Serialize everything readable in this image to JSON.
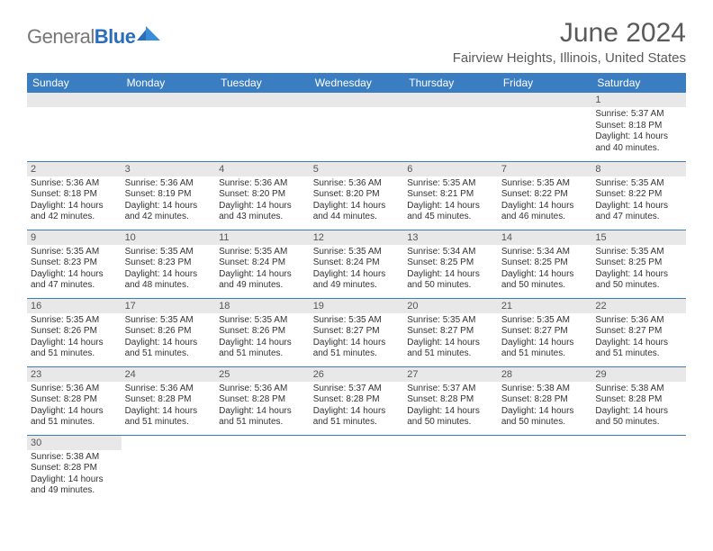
{
  "brand": {
    "part1": "General",
    "part2": "Blue"
  },
  "title": "June 2024",
  "location": "Fairview Heights, Illinois, United States",
  "colors": {
    "header_bg": "#3a7ec1",
    "header_text": "#ffffff",
    "daynum_bg": "#e8e8e8",
    "grid_border": "#3a7ec1",
    "title_text": "#5a5a5a",
    "body_text": "#333333",
    "logo_gray": "#777777",
    "logo_blue": "#2a6ebb"
  },
  "typography": {
    "month_title_pt": 30,
    "location_pt": 15,
    "dayheader_pt": 12,
    "daynum_pt": 11,
    "body_pt": 10
  },
  "layout": {
    "columns": 7,
    "rows": 6,
    "first_day_column_index": 6
  },
  "day_headers": [
    "Sunday",
    "Monday",
    "Tuesday",
    "Wednesday",
    "Thursday",
    "Friday",
    "Saturday"
  ],
  "days": [
    {
      "n": 1,
      "sunrise": "5:37 AM",
      "sunset": "8:18 PM",
      "daylight": "14 hours and 40 minutes."
    },
    {
      "n": 2,
      "sunrise": "5:36 AM",
      "sunset": "8:18 PM",
      "daylight": "14 hours and 42 minutes."
    },
    {
      "n": 3,
      "sunrise": "5:36 AM",
      "sunset": "8:19 PM",
      "daylight": "14 hours and 42 minutes."
    },
    {
      "n": 4,
      "sunrise": "5:36 AM",
      "sunset": "8:20 PM",
      "daylight": "14 hours and 43 minutes."
    },
    {
      "n": 5,
      "sunrise": "5:36 AM",
      "sunset": "8:20 PM",
      "daylight": "14 hours and 44 minutes."
    },
    {
      "n": 6,
      "sunrise": "5:35 AM",
      "sunset": "8:21 PM",
      "daylight": "14 hours and 45 minutes."
    },
    {
      "n": 7,
      "sunrise": "5:35 AM",
      "sunset": "8:22 PM",
      "daylight": "14 hours and 46 minutes."
    },
    {
      "n": 8,
      "sunrise": "5:35 AM",
      "sunset": "8:22 PM",
      "daylight": "14 hours and 47 minutes."
    },
    {
      "n": 9,
      "sunrise": "5:35 AM",
      "sunset": "8:23 PM",
      "daylight": "14 hours and 47 minutes."
    },
    {
      "n": 10,
      "sunrise": "5:35 AM",
      "sunset": "8:23 PM",
      "daylight": "14 hours and 48 minutes."
    },
    {
      "n": 11,
      "sunrise": "5:35 AM",
      "sunset": "8:24 PM",
      "daylight": "14 hours and 49 minutes."
    },
    {
      "n": 12,
      "sunrise": "5:35 AM",
      "sunset": "8:24 PM",
      "daylight": "14 hours and 49 minutes."
    },
    {
      "n": 13,
      "sunrise": "5:34 AM",
      "sunset": "8:25 PM",
      "daylight": "14 hours and 50 minutes."
    },
    {
      "n": 14,
      "sunrise": "5:34 AM",
      "sunset": "8:25 PM",
      "daylight": "14 hours and 50 minutes."
    },
    {
      "n": 15,
      "sunrise": "5:35 AM",
      "sunset": "8:25 PM",
      "daylight": "14 hours and 50 minutes."
    },
    {
      "n": 16,
      "sunrise": "5:35 AM",
      "sunset": "8:26 PM",
      "daylight": "14 hours and 51 minutes."
    },
    {
      "n": 17,
      "sunrise": "5:35 AM",
      "sunset": "8:26 PM",
      "daylight": "14 hours and 51 minutes."
    },
    {
      "n": 18,
      "sunrise": "5:35 AM",
      "sunset": "8:26 PM",
      "daylight": "14 hours and 51 minutes."
    },
    {
      "n": 19,
      "sunrise": "5:35 AM",
      "sunset": "8:27 PM",
      "daylight": "14 hours and 51 minutes."
    },
    {
      "n": 20,
      "sunrise": "5:35 AM",
      "sunset": "8:27 PM",
      "daylight": "14 hours and 51 minutes."
    },
    {
      "n": 21,
      "sunrise": "5:35 AM",
      "sunset": "8:27 PM",
      "daylight": "14 hours and 51 minutes."
    },
    {
      "n": 22,
      "sunrise": "5:36 AM",
      "sunset": "8:27 PM",
      "daylight": "14 hours and 51 minutes."
    },
    {
      "n": 23,
      "sunrise": "5:36 AM",
      "sunset": "8:28 PM",
      "daylight": "14 hours and 51 minutes."
    },
    {
      "n": 24,
      "sunrise": "5:36 AM",
      "sunset": "8:28 PM",
      "daylight": "14 hours and 51 minutes."
    },
    {
      "n": 25,
      "sunrise": "5:36 AM",
      "sunset": "8:28 PM",
      "daylight": "14 hours and 51 minutes."
    },
    {
      "n": 26,
      "sunrise": "5:37 AM",
      "sunset": "8:28 PM",
      "daylight": "14 hours and 51 minutes."
    },
    {
      "n": 27,
      "sunrise": "5:37 AM",
      "sunset": "8:28 PM",
      "daylight": "14 hours and 50 minutes."
    },
    {
      "n": 28,
      "sunrise": "5:38 AM",
      "sunset": "8:28 PM",
      "daylight": "14 hours and 50 minutes."
    },
    {
      "n": 29,
      "sunrise": "5:38 AM",
      "sunset": "8:28 PM",
      "daylight": "14 hours and 50 minutes."
    },
    {
      "n": 30,
      "sunrise": "5:38 AM",
      "sunset": "8:28 PM",
      "daylight": "14 hours and 49 minutes."
    }
  ],
  "labels": {
    "sunrise": "Sunrise: ",
    "sunset": "Sunset: ",
    "daylight": "Daylight: "
  }
}
